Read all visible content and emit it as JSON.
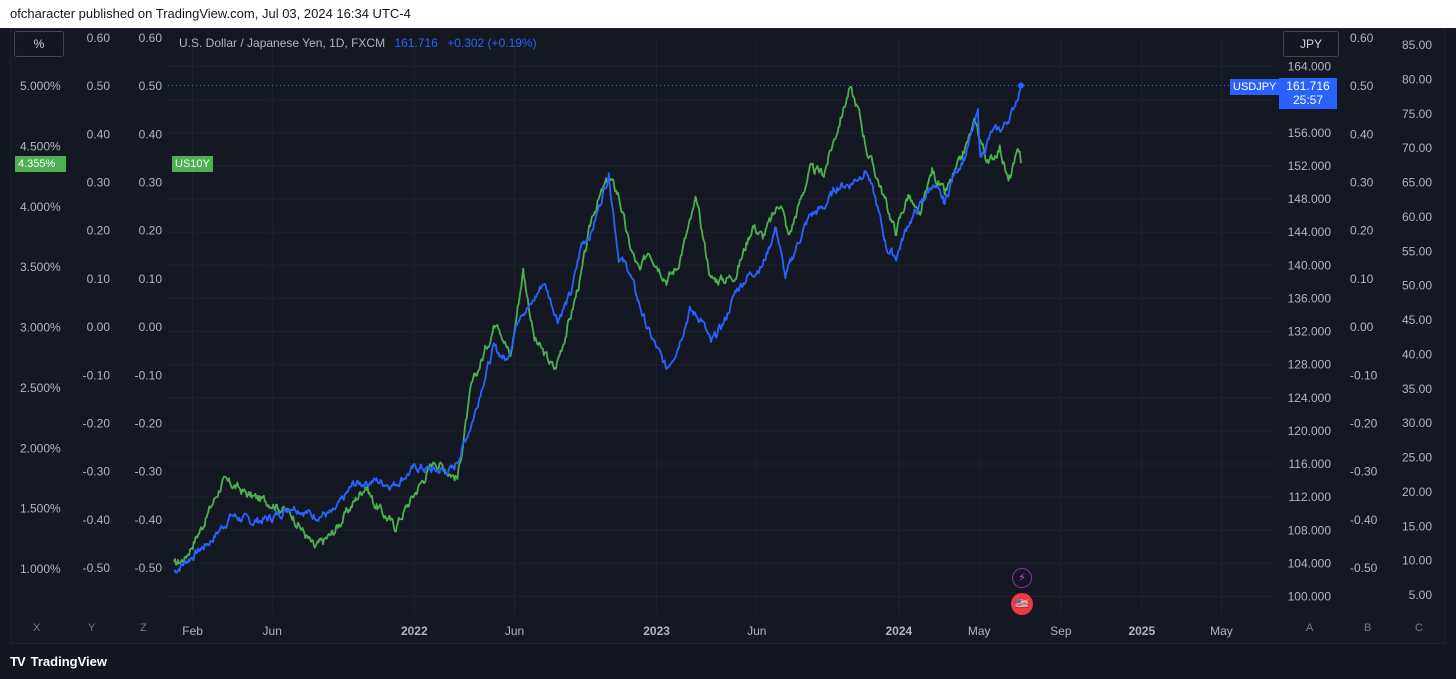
{
  "header": {
    "published_text": "ofcharacter published on TradingView.com, Jul 03, 2024 16:34 UTC-4"
  },
  "controls": {
    "percent_button": "%",
    "currency_button": "JPY"
  },
  "legend": {
    "symbol": "U.S. Dollar / Japanese Yen, 1D, FXCM",
    "last": "161.716",
    "change": "+0.302 (+0.19%)"
  },
  "badges": {
    "us10y_price": "4.355%",
    "us10y_label": "US10Y",
    "usdjpy_label": "USDJPY",
    "usdjpy_price": "161.716",
    "usdjpy_countdown": "25:57"
  },
  "footer": {
    "brand": "TradingView",
    "logo": "TV"
  },
  "axis_letters": {
    "x": "X",
    "y": "Y",
    "z": "Z",
    "a": "A",
    "b": "B",
    "c": "C"
  },
  "events": {
    "lightning_icon": "⚡",
    "flag_icon": "🇺🇸"
  },
  "colors": {
    "usdjpy": "#2962ff",
    "us10y": "#4caf50",
    "background": "#131722",
    "grid": "#1e222d",
    "text": "#b2b5be"
  },
  "chart_data": {
    "type": "line",
    "title": "U.S. Dollar / Japanese Yen, 1D, FXCM",
    "x_tick_labels": [
      "Feb",
      "Jun",
      "2022",
      "Jun",
      "2023",
      "Jun",
      "2024",
      "May",
      "Sep",
      "2025",
      "May"
    ],
    "axes": {
      "left_pct": [
        "5.000%",
        "4.500%",
        "4.000%",
        "3.500%",
        "3.000%",
        "2.500%",
        "2.000%",
        "1.500%",
        "1.000%"
      ],
      "left_a": [
        "0.60",
        "0.50",
        "0.40",
        "0.30",
        "0.20",
        "0.10",
        "0.00",
        "-0.10",
        "-0.20",
        "-0.30",
        "-0.40",
        "-0.50"
      ],
      "left_b": [
        "0.60",
        "0.50",
        "0.40",
        "0.30",
        "0.20",
        "0.10",
        "0.00",
        "-0.10",
        "-0.20",
        "-0.30",
        "-0.40",
        "-0.50"
      ],
      "right_price": [
        "164.000",
        "160.000",
        "156.000",
        "152.000",
        "148.000",
        "144.000",
        "140.000",
        "136.000",
        "132.000",
        "128.000",
        "124.000",
        "120.000",
        "116.000",
        "112.000",
        "108.000",
        "104.000",
        "100.000"
      ],
      "right_b": [
        "0.60",
        "0.50",
        "0.40",
        "0.30",
        "0.20",
        "0.10",
        "0.00",
        "-0.10",
        "-0.20",
        "-0.30",
        "-0.40",
        "-0.50"
      ],
      "right_c": [
        "85.00",
        "80.00",
        "75.00",
        "70.00",
        "65.00",
        "60.00",
        "55.00",
        "50.00",
        "45.00",
        "40.00",
        "35.00",
        "30.00",
        "25.00",
        "20.00",
        "15.00",
        "10.00",
        "5.00"
      ]
    },
    "price_range": [
      96.5,
      169.5
    ],
    "series": [
      {
        "name": "USDJPY",
        "color": "#2962ff",
        "x": [
          "2021-01-04",
          "2021-02-01",
          "2021-03-01",
          "2021-04-01",
          "2021-05-01",
          "2021-06-01",
          "2021-07-01",
          "2021-08-01",
          "2021-09-01",
          "2021-10-01",
          "2021-11-01",
          "2021-12-01",
          "2022-01-04",
          "2022-02-01",
          "2022-03-01",
          "2022-03-15",
          "2022-04-01",
          "2022-04-15",
          "2022-05-01",
          "2022-05-20",
          "2022-06-10",
          "2022-06-25",
          "2022-07-15",
          "2022-08-05",
          "2022-08-25",
          "2022-09-10",
          "2022-09-25",
          "2022-10-21",
          "2022-11-05",
          "2022-11-20",
          "2022-12-05",
          "2022-12-20",
          "2023-01-16",
          "2023-02-01",
          "2023-02-20",
          "2023-03-10",
          "2023-03-24",
          "2023-04-15",
          "2023-05-01",
          "2023-05-20",
          "2023-06-10",
          "2023-06-30",
          "2023-07-14",
          "2023-08-01",
          "2023-08-20",
          "2023-09-10",
          "2023-09-30",
          "2023-10-20",
          "2023-11-13",
          "2023-11-28",
          "2023-12-14",
          "2023-12-28",
          "2024-01-15",
          "2024-02-01",
          "2024-02-20",
          "2024-03-10",
          "2024-03-25",
          "2024-04-10",
          "2024-04-29",
          "2024-05-03",
          "2024-05-20",
          "2024-06-05",
          "2024-06-20",
          "2024-07-03"
        ],
        "values": [
          103.0,
          104.9,
          106.8,
          109.8,
          109.0,
          109.5,
          111.0,
          109.8,
          110.0,
          113.5,
          114.0,
          113.5,
          115.6,
          115.2,
          115.3,
          118.0,
          121.8,
          126.0,
          130.0,
          128.5,
          134.5,
          135.0,
          138.0,
          133.5,
          136.5,
          142.5,
          144.0,
          151.0,
          141.0,
          139.5,
          135.5,
          132.0,
          127.5,
          130.0,
          134.5,
          133.5,
          130.5,
          133.5,
          137.0,
          138.8,
          140.0,
          144.6,
          138.5,
          142.5,
          146.0,
          147.0,
          149.5,
          149.8,
          151.5,
          147.5,
          142.0,
          141.0,
          145.0,
          147.0,
          149.8,
          147.5,
          151.2,
          153.2,
          158.3,
          153.0,
          156.0,
          156.5,
          158.5,
          161.7
        ]
      },
      {
        "name": "US10Y",
        "color": "#4caf50",
        "unit": "%",
        "x": [
          "2021-01-04",
          "2021-01-20",
          "2021-02-15",
          "2021-03-18",
          "2021-04-01",
          "2021-05-01",
          "2021-06-01",
          "2021-07-01",
          "2021-08-04",
          "2021-09-01",
          "2021-10-20",
          "2021-11-01",
          "2021-12-03",
          "2022-01-04",
          "2022-02-01",
          "2022-03-07",
          "2022-03-28",
          "2022-05-06",
          "2022-05-26",
          "2022-06-14",
          "2022-07-01",
          "2022-08-01",
          "2022-08-25",
          "2022-09-10",
          "2022-09-27",
          "2022-10-21",
          "2022-11-05",
          "2022-11-20",
          "2022-12-07",
          "2022-12-20",
          "2023-01-16",
          "2023-02-01",
          "2023-03-02",
          "2023-03-24",
          "2023-04-15",
          "2023-05-01",
          "2023-05-26",
          "2023-06-10",
          "2023-07-07",
          "2023-07-19",
          "2023-08-20",
          "2023-09-10",
          "2023-10-19",
          "2023-11-01",
          "2023-11-15",
          "2023-12-01",
          "2023-12-27",
          "2024-01-15",
          "2024-02-01",
          "2024-02-20",
          "2024-03-10",
          "2024-04-01",
          "2024-04-25",
          "2024-05-15",
          "2024-06-01",
          "2024-06-14",
          "2024-07-01",
          "2024-07-03"
        ],
        "values": [
          1.03,
          1.09,
          1.35,
          1.72,
          1.7,
          1.6,
          1.55,
          1.45,
          1.17,
          1.3,
          1.7,
          1.55,
          1.35,
          1.65,
          1.9,
          1.75,
          2.5,
          3.08,
          2.75,
          3.48,
          2.9,
          2.65,
          3.1,
          3.45,
          3.95,
          4.24,
          4.1,
          3.7,
          3.45,
          3.65,
          3.4,
          3.5,
          4.05,
          3.4,
          3.4,
          3.45,
          3.85,
          3.75,
          4.05,
          3.75,
          4.3,
          4.28,
          4.98,
          4.8,
          4.45,
          4.22,
          3.79,
          4.1,
          3.9,
          4.3,
          4.1,
          4.35,
          4.7,
          4.35,
          4.5,
          4.2,
          4.48,
          4.36
        ]
      }
    ]
  }
}
